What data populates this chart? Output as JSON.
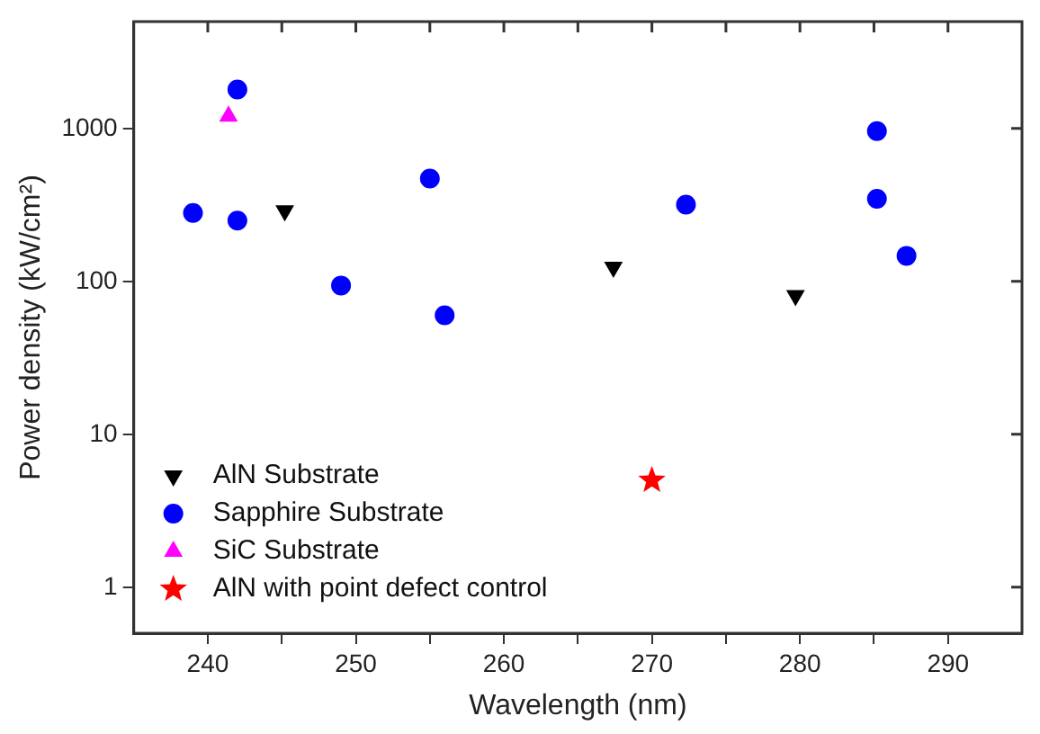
{
  "chart_data": {
    "type": "scatter",
    "xlabel": "Wavelength (nm)",
    "ylabel": "Power density (kW/cm²)",
    "xlim": [
      235,
      295
    ],
    "xticks": [
      240,
      {
        "value": 245,
        "label": null
      },
      250,
      {
        "value": 255,
        "label": null
      },
      260,
      {
        "value": 265,
        "label": null
      },
      270,
      {
        "value": 275,
        "label": null
      },
      280,
      {
        "value": 285,
        "label": null
      },
      290
    ],
    "ylim": [
      0.5,
      5000
    ],
    "yticks": [
      1,
      10,
      100,
      1000
    ],
    "log": "y",
    "grid": false,
    "legend": "bottom left",
    "series": [
      {
        "name": "AlN Substrate",
        "color": "#000000",
        "marker": "triangle-down",
        "x": [
          245.2,
          267.4,
          279.7
        ],
        "values": [
          290,
          124,
          81
        ]
      },
      {
        "name": "Sapphire Substrate",
        "color": "#0000ff",
        "marker": "circle",
        "x": [
          239,
          242,
          242,
          249,
          255,
          256,
          272.3,
          285.2,
          285.2,
          287.2
        ],
        "values": [
          280,
          1800,
          250,
          94,
          470,
          60,
          318,
          960,
          347,
          147
        ]
      },
      {
        "name": "SiC Substrate",
        "color": "#ff00ff",
        "marker": "triangle",
        "x": [
          241.4
        ],
        "values": [
          1200
        ]
      },
      {
        "name": "AlN with point defect control",
        "color": "#ff0000",
        "marker": "star",
        "x": [
          270
        ],
        "values": [
          5
        ]
      }
    ]
  }
}
